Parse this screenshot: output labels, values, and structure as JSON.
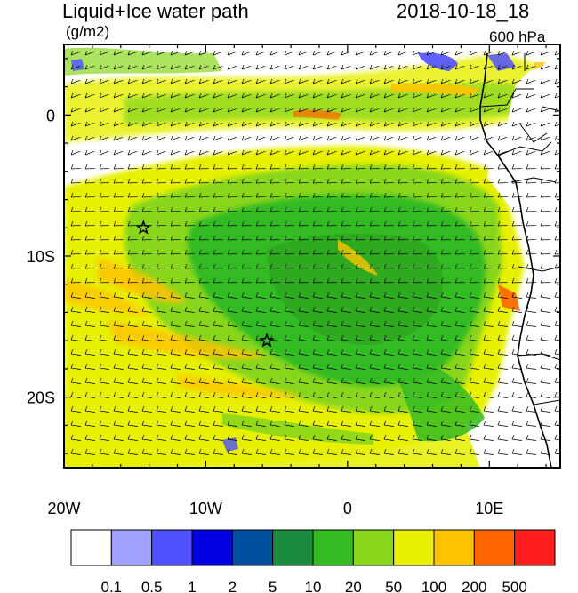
{
  "header": {
    "title": "Liquid+Ice water path",
    "units": "(g/m2)",
    "datetime": "2018-10-18_18",
    "level": "600 hPa"
  },
  "map": {
    "lon_range": [
      -20,
      15
    ],
    "lat_range": [
      -25,
      5
    ],
    "x_ticks": [
      {
        "lon": -20,
        "label": "20W"
      },
      {
        "lon": -10,
        "label": "10W"
      },
      {
        "lon": 0,
        "label": "0"
      },
      {
        "lon": 10,
        "label": "10E"
      }
    ],
    "y_ticks": [
      {
        "lat": 0,
        "label": "0"
      },
      {
        "lat": -10,
        "label": "10S"
      },
      {
        "lat": -20,
        "label": "20S"
      }
    ],
    "stars": [
      {
        "lon": -14.4,
        "lat": -8.0
      },
      {
        "lon": -5.7,
        "lat": -16.0
      }
    ]
  },
  "colorbar": {
    "colors": [
      "#ffffff",
      "#a0a0ff",
      "#5050ff",
      "#0000e0",
      "#004f9f",
      "#1a8a3c",
      "#33bb22",
      "#88d61a",
      "#e6f000",
      "#ffc300",
      "#ff6400",
      "#ff1e1e"
    ],
    "labels": [
      "0.1",
      "0.5",
      "1",
      "2",
      "5",
      "10",
      "20",
      "50",
      "100",
      "200",
      "500"
    ]
  }
}
